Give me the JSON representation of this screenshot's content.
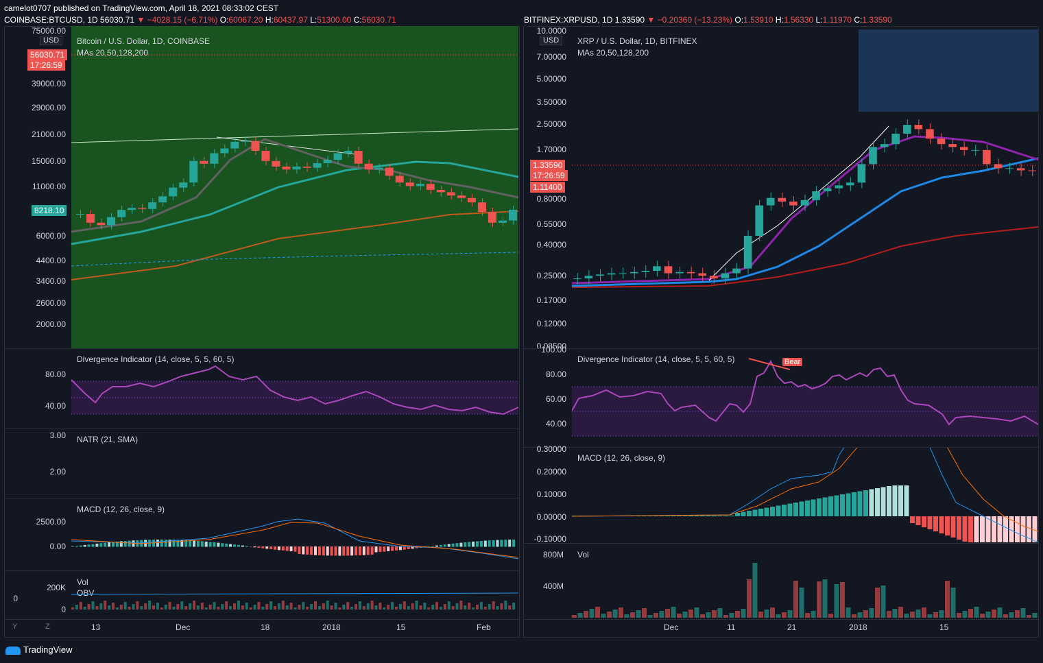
{
  "header": {
    "publisher_line": "camelot0707 published on TradingView.com, April 18, 2021 08:33:02 CEST"
  },
  "left": {
    "symbol_line_pre": "COINBASE:BTCUSD, 1D  56030.71",
    "symbol_line_change": "▼ −4028.15 (−6.71%)",
    "symbol_line_o_label": " O:",
    "symbol_line_o": "60067.20",
    "symbol_line_h_label": " H:",
    "symbol_line_h": "60437.97",
    "symbol_line_l_label": " L:",
    "symbol_line_l": "51300.00",
    "symbol_line_c_label": " C:",
    "symbol_line_c": "56030.71",
    "title": "Bitcoin / U.S. Dollar, 1D, COINBASE",
    "mas": "MAs 20,50,128,200",
    "usd": "USD",
    "price_badge": "56030.71",
    "time_badge": "17:26:59",
    "last_badge": "8218.10",
    "price_ticks": [
      "75000.00",
      "39000.00",
      "29000.00",
      "21000.00",
      "15000.00",
      "11000.00",
      "6000.00",
      "4400.00",
      "3400.00",
      "2600.00",
      "2000.00"
    ],
    "div_title": "Divergence Indicator (14, close, 5, 5, 60, 5)",
    "div_ticks": [
      "80.00",
      "40.00"
    ],
    "natr_title": "NATR (21, SMA)",
    "natr_ticks": [
      "3.00",
      "2.00"
    ],
    "macd_title": "MACD (12, 26, close, 9)",
    "macd_ticks": [
      "2500.00",
      "0.00"
    ],
    "vol_title": "Vol",
    "obv_title": "OBV",
    "vol_ticks": [
      "200K",
      "0"
    ],
    "obv_tick": "0",
    "x_ticks": [
      "13",
      "Dec",
      "18",
      "2018",
      "15",
      "Feb"
    ],
    "y_btn": "Y",
    "z_btn": "Z",
    "chart_colors": {
      "bg_green": "#1b5e20",
      "up": "#26a69a",
      "down": "#ef5350",
      "ma20": "#616161",
      "ma50": "#26a69a",
      "ma128": "#bf5a1a",
      "ma200": "#2196f3"
    }
  },
  "right": {
    "symbol_line_pre": "BITFINEX:XRPUSD, 1D  1.33590",
    "symbol_line_change": "▼ −0.20360 (−13.23%)",
    "symbol_line_o_label": " O:",
    "symbol_line_o": "1.53910",
    "symbol_line_h_label": " H:",
    "symbol_line_h": "1.56330",
    "symbol_line_l_label": " L:",
    "symbol_line_l": "1.11970",
    "symbol_line_c_label": " C:",
    "symbol_line_c": "1.33590",
    "title": "XRP / U.S. Dollar, 1D, BITFINEX",
    "mas": "MAs 20,50,128,200",
    "usd": "USD",
    "price_badge": "1.33590",
    "time_badge": "17:26:59",
    "low_badge": "1.11400",
    "price_ticks": [
      "10.0000",
      "7.00000",
      "5.00000",
      "3.50000",
      "2.50000",
      "1.70000",
      "0.80000",
      "0.55000",
      "0.40000",
      "0.25000",
      "0.17000",
      "0.12000",
      "0.08500"
    ],
    "div_title": "Divergence Indicator (14, close, 5, 5, 60, 5)",
    "div_ticks": [
      "100.00",
      "80.00",
      "60.00",
      "40.00"
    ],
    "bear_label": "Bear",
    "macd_title": "MACD (12, 26, close, 9)",
    "macd_ticks": [
      "0.30000",
      "0.20000",
      "0.10000",
      "0.00000",
      "-0.10000"
    ],
    "vol_title": "Vol",
    "vol_ticks": [
      "800M",
      "400M"
    ],
    "x_ticks": [
      "Dec",
      "11",
      "21",
      "2018",
      "15"
    ]
  },
  "footer": {
    "logo": "TradingView"
  },
  "chart_data": [
    {
      "type": "line",
      "title": "Bitcoin / U.S. Dollar, 1D, COINBASE",
      "scale": "log",
      "x_ticks": [
        "13",
        "Dec",
        "18",
        "2018",
        "15",
        "Feb"
      ],
      "series": [
        {
          "name": "BTCUSD close",
          "values": [
            7800,
            7000,
            6800,
            7500,
            8200,
            8400,
            8300,
            9000,
            9700,
            10800,
            11500,
            15000,
            14500,
            16500,
            17500,
            19000,
            19200,
            17000,
            15000,
            14000,
            13500,
            14000,
            13800,
            14600,
            15200,
            16500,
            17000,
            14500,
            13500,
            13800,
            12500,
            11500,
            11000,
            11300,
            10500,
            10200,
            9800,
            9500,
            9000,
            8000,
            7000,
            7200,
            8218
          ]
        }
      ]
    },
    {
      "type": "line",
      "title": "XRP / U.S. Dollar, 1D, BITFINEX",
      "scale": "log",
      "x_ticks": [
        "Dec",
        "11",
        "21",
        "2018",
        "15"
      ],
      "series": [
        {
          "name": "XRPUSD close",
          "values": [
            0.22,
            0.23,
            0.235,
            0.24,
            0.24,
            0.245,
            0.25,
            0.27,
            0.24,
            0.245,
            0.24,
            0.23,
            0.22,
            0.24,
            0.26,
            0.45,
            0.75,
            0.85,
            0.8,
            0.75,
            0.82,
            0.95,
            1.0,
            1.05,
            1.1,
            1.5,
            2.0,
            2.1,
            2.5,
            2.9,
            2.7,
            2.3,
            2.1,
            2.0,
            1.9,
            1.9,
            1.5,
            1.4,
            1.4,
            1.35,
            1.34
          ]
        }
      ]
    }
  ]
}
